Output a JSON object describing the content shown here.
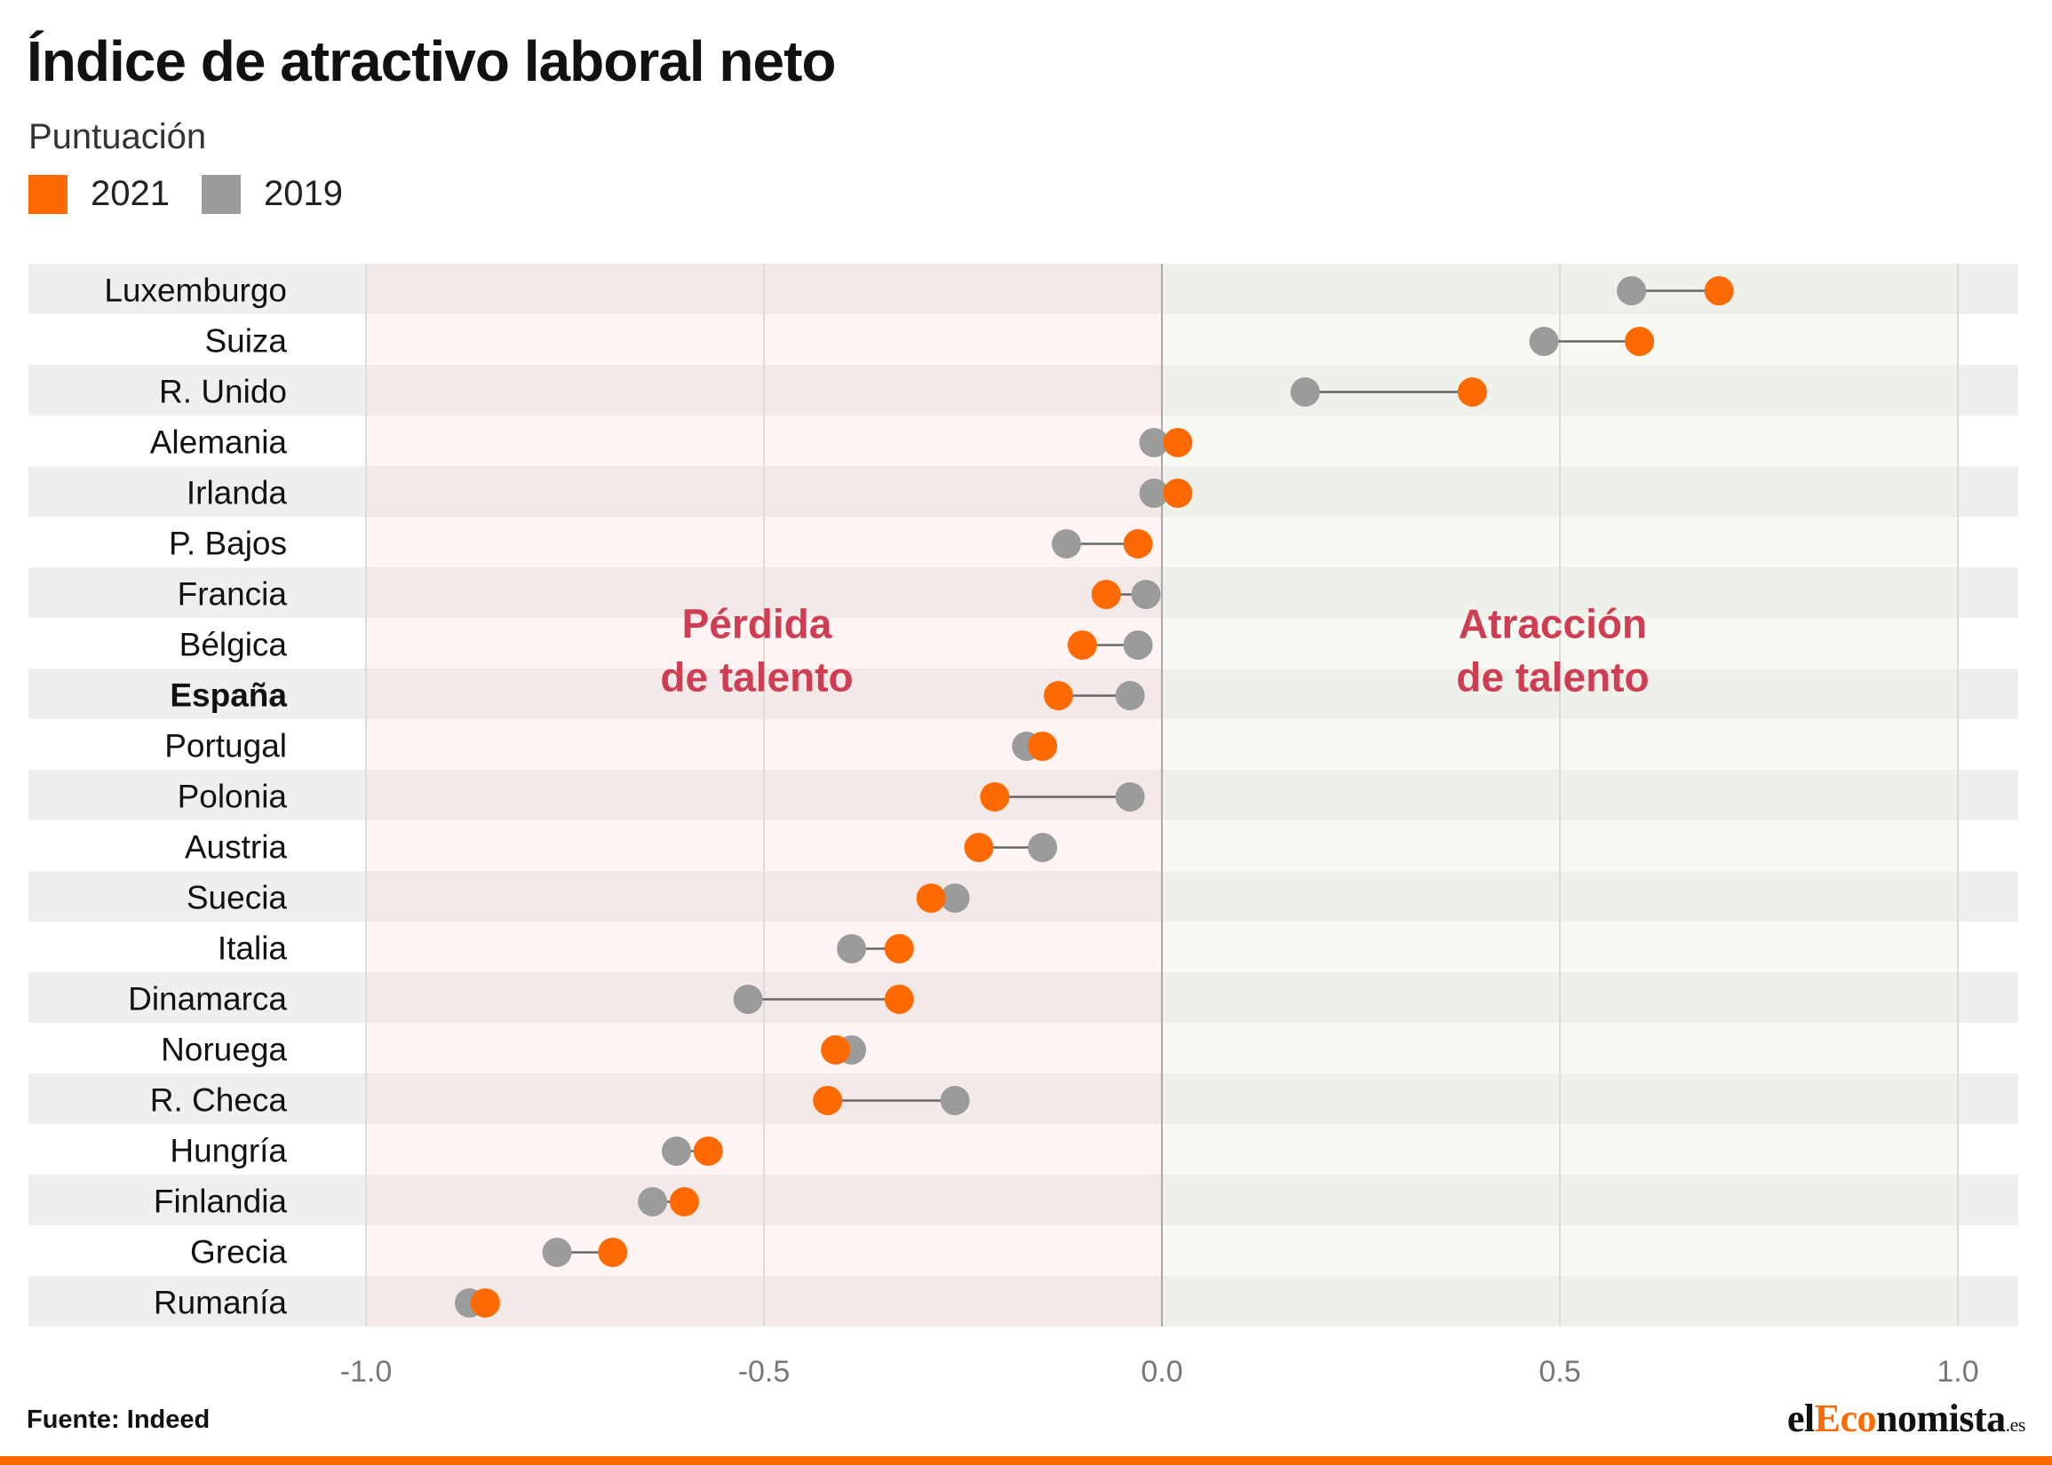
{
  "title": "Índice de atractivo laboral neto",
  "subtitle": "Puntuación",
  "legend": [
    {
      "label": "2021",
      "color": "#ff6a00"
    },
    {
      "label": "2019",
      "color": "#9b9b9b"
    }
  ],
  "source": "Fuente: Indeed",
  "brand": {
    "part1": "el",
    "part2": "Eco",
    "part3": "nomista",
    "suffix": ".es"
  },
  "colors": {
    "accent": "#ff6a00",
    "series_2019": "#9b9b9b",
    "negative_zone": "#fdf0f0",
    "positive_zone": "#f6f9f2",
    "annotation": "#cf3d52"
  },
  "chart_data": {
    "type": "dumbbell",
    "title": "Índice de atractivo laboral neto",
    "subtitle": "Puntuación",
    "xlim": [
      -1.0,
      1.0
    ],
    "x_ticks": [
      "-1.0",
      "-0.5",
      "0.0",
      "0.5",
      "1.0"
    ],
    "x_tick_values": [
      -1.0,
      -0.5,
      0.0,
      0.5,
      1.0
    ],
    "grid": true,
    "legend_position": "top-left",
    "highlight_category": "España",
    "annotations": [
      {
        "line1": "Pérdida",
        "line2": "de talento",
        "x": -0.5
      },
      {
        "line1": "Atracción",
        "line2": "de talento",
        "x": 0.5
      }
    ],
    "categories": [
      "Luxemburgo",
      "Suiza",
      "R. Unido",
      "Alemania",
      "Irlanda",
      "P. Bajos",
      "Francia",
      "Bélgica",
      "España",
      "Portugal",
      "Polonia",
      "Austria",
      "Suecia",
      "Italia",
      "Dinamarca",
      "Noruega",
      "R. Checa",
      "Hungría",
      "Finlandia",
      "Grecia",
      "Rumanía"
    ],
    "series": [
      {
        "name": "2021",
        "color": "#ff6a00",
        "values": [
          0.7,
          0.6,
          0.39,
          0.02,
          0.02,
          -0.03,
          -0.07,
          -0.1,
          -0.13,
          -0.15,
          -0.21,
          -0.23,
          -0.29,
          -0.33,
          -0.33,
          -0.41,
          -0.42,
          -0.57,
          -0.6,
          -0.69,
          -0.85
        ]
      },
      {
        "name": "2019",
        "color": "#9b9b9b",
        "values": [
          0.59,
          0.48,
          0.18,
          -0.01,
          -0.01,
          -0.12,
          -0.02,
          -0.03,
          -0.04,
          -0.17,
          -0.04,
          -0.15,
          -0.26,
          -0.39,
          -0.52,
          -0.39,
          -0.26,
          -0.61,
          -0.64,
          -0.76,
          -0.87
        ]
      }
    ]
  }
}
